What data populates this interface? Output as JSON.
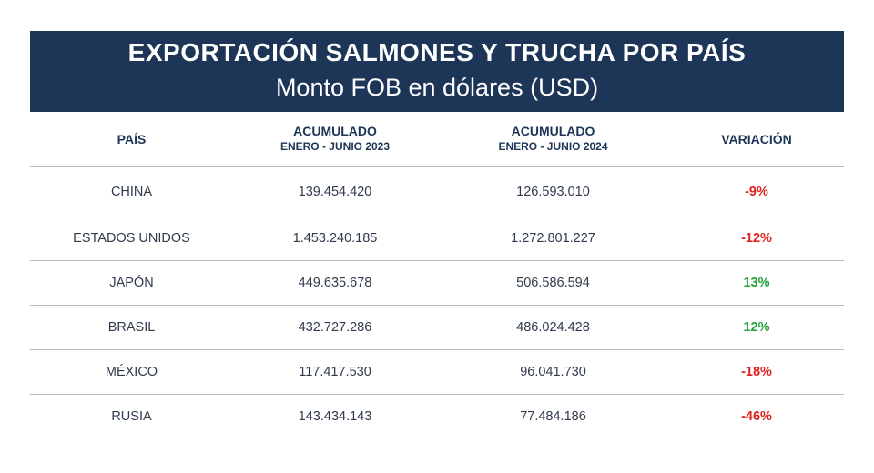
{
  "header": {
    "title": "EXPORTACIÓN SALMONES Y TRUCHA POR PAÍS",
    "subtitle": "Monto FOB en dólares (USD)"
  },
  "table": {
    "columns": [
      {
        "line1": "PAÍS",
        "line2": ""
      },
      {
        "line1": "ACUMULADO",
        "line2": "ENERO - JUNIO 2023"
      },
      {
        "line1": "ACUMULADO",
        "line2": "ENERO - JUNIO 2024"
      },
      {
        "line1": "VARIACIÓN",
        "line2": ""
      }
    ],
    "rows": [
      {
        "country": "CHINA",
        "y2023": "139.454.420",
        "y2024": "126.593.010",
        "variation": "-9%",
        "trend": "negative"
      },
      {
        "country": "ESTADOS UNIDOS",
        "y2023": "1.453.240.185",
        "y2024": "1.272.801.227",
        "variation": "-12%",
        "trend": "negative"
      },
      {
        "country": "JAPÓN",
        "y2023": "449.635.678",
        "y2024": "506.586.594",
        "variation": "13%",
        "trend": "positive"
      },
      {
        "country": "BRASIL",
        "y2023": "432.727.286",
        "y2024": "486.024.428",
        "variation": "12%",
        "trend": "positive"
      },
      {
        "country": "MÉXICO",
        "y2023": "117.417.530",
        "y2024": "96.041.730",
        "variation": "-18%",
        "trend": "negative"
      },
      {
        "country": "RUSIA",
        "y2023": "143.434.143",
        "y2024": "77.484.186",
        "variation": "-46%",
        "trend": "negative"
      }
    ]
  },
  "colors": {
    "banner": "#1d3557",
    "header_text": "#1d3557",
    "negative": "#e0201f",
    "positive": "#27a33a"
  }
}
